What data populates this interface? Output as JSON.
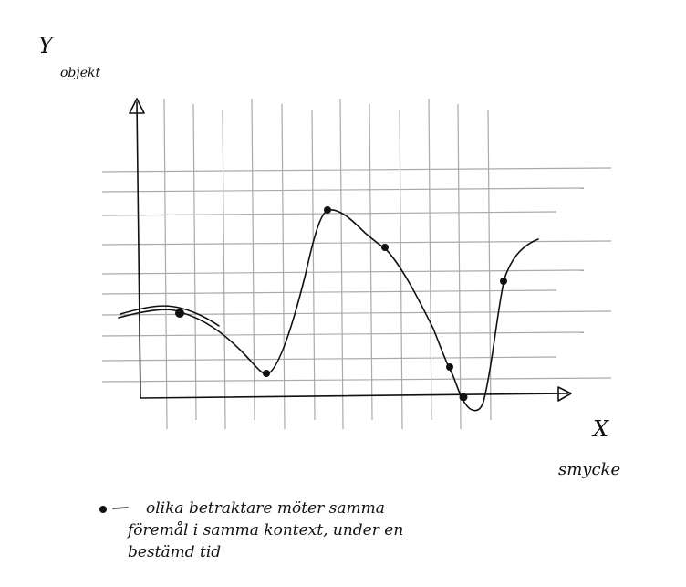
{
  "axes": {
    "y_label": "Y",
    "y_name": "objekt",
    "x_label": "X",
    "x_name": "smycke"
  },
  "legend": {
    "lines": [
      "olika betraktare möter samma",
      "föremål i samma kontext, under en",
      "bestämd tid"
    ]
  }
}
